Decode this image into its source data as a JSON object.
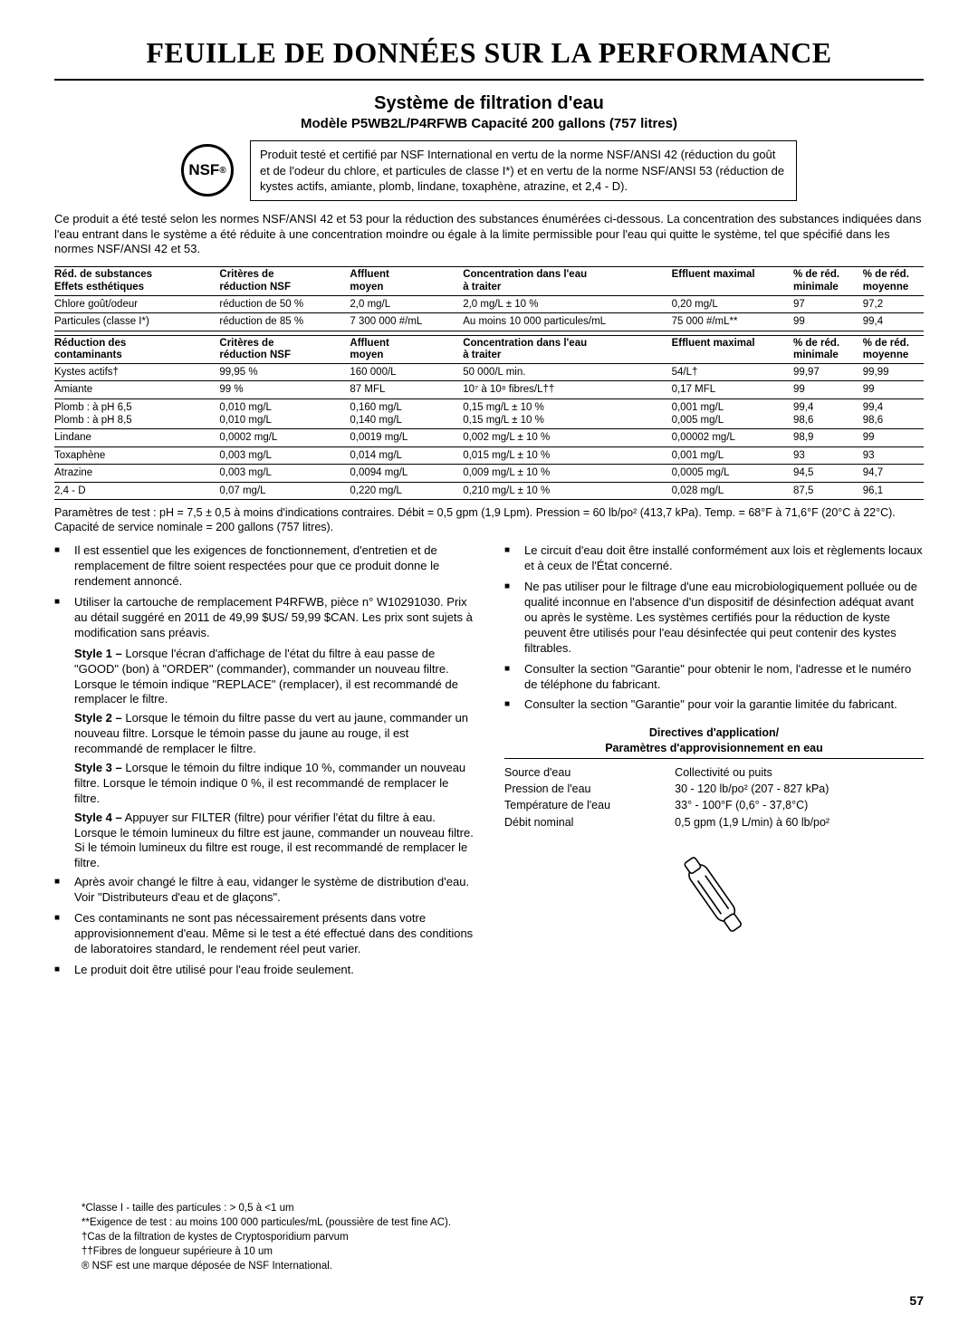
{
  "title": "FEUILLE DE DONNÉES SUR LA PERFORMANCE",
  "subtitle": "Système de filtration d'eau",
  "model": "Modèle P5WB2L/P4RFWB Capacité 200 gallons (757 litres)",
  "nsf_label": "NSF",
  "cert_text": "Produit testé et certifié par NSF International en vertu de la norme NSF/ANSI 42 (réduction du goût et de l'odeur du chlore, et particules de classe I*) et en vertu de la norme NSF/ANSI 53 (réduction de kystes actifs, amiante, plomb, lindane, toxaphène, atrazine, et 2,4 - D).",
  "intro": "Ce produit a été testé selon les normes NSF/ANSI 42 et 53 pour la réduction des substances énumérées ci-dessous. La concentration des substances indiquées dans l'eau entrant dans le système a été réduite à une concentration moindre ou égale à la limite permissible pour l'eau qui quitte le système, tel que spécifié dans les normes NSF/ANSI 42 et 53.",
  "table1": {
    "head": [
      "Réd. de substances\nEffets esthétiques",
      "Critères de\nréduction NSF",
      "Affluent\nmoyen",
      "Concentration dans l'eau\nà traiter",
      "Effluent maximal",
      "% de réd.\nminimale",
      "% de réd.\nmoyenne"
    ],
    "rows": [
      [
        "Chlore goût/odeur",
        "réduction de 50 %",
        "2,0 mg/L",
        "2,0 mg/L ± 10 %",
        "0,20 mg/L",
        "97",
        "97,2"
      ],
      [
        "Particules (classe I*)",
        "réduction de 85 %",
        "7 300 000 #/mL",
        "Au moins 10 000 particules/mL",
        "75 000 #/mL**",
        "99",
        "99,4"
      ]
    ]
  },
  "table2": {
    "head": [
      "Réduction des\ncontaminants",
      "Critères de\nréduction NSF",
      "Affluent\nmoyen",
      "Concentration dans l'eau\nà traiter",
      "Effluent maximal",
      "% de réd.\nminimale",
      "% de réd.\nmoyenne"
    ],
    "rows": [
      [
        "Kystes actifs†",
        "99,95 %",
        "160 000/L",
        "50 000/L min.",
        "54/L†",
        "99,97",
        "99,99"
      ],
      [
        "Amiante",
        "99 %",
        "87 MFL",
        "10⁷ à 10⁸ fibres/L††",
        "0,17 MFL",
        "99",
        "99"
      ],
      [
        "Plomb : à pH 6,5\nPlomb : à pH 8,5",
        "0,010 mg/L\n0,010 mg/L",
        "0,160 mg/L\n0,140 mg/L",
        "0,15 mg/L ± 10 %\n0,15 mg/L ± 10 %",
        "0,001 mg/L\n0,005 mg/L",
        "99,4\n98,6",
        "99,4\n98,6"
      ],
      [
        "Lindane",
        "0,0002 mg/L",
        "0,0019 mg/L",
        "0,002 mg/L ± 10 %",
        "0,00002 mg/L",
        "98,9",
        "99"
      ],
      [
        "Toxaphène",
        "0,003 mg/L",
        "0,014 mg/L",
        "0,015 mg/L ± 10 %",
        "0,001 mg/L",
        "93",
        "93"
      ],
      [
        "Atrazine",
        "0,003 mg/L",
        "0,0094 mg/L",
        "0,009 mg/L ± 10 %",
        "0,0005 mg/L",
        "94,5",
        "94,7"
      ],
      [
        "2,4 - D",
        "0,07 mg/L",
        "0,220 mg/L",
        "0,210 mg/L ± 10 %",
        "0,028 mg/L",
        "87,5",
        "96,1"
      ]
    ]
  },
  "params": "Paramètres de test : pH = 7,5 ± 0,5 à moins d'indications contraires. Débit = 0,5 gpm (1,9 Lpm). Pression = 60 lb/po² (413,7 kPa). Temp. = 68°F à 71,6°F (20°C à 22°C). Capacité de service nominale = 200 gallons (757 litres).",
  "left_bullets": [
    "Il est essentiel que les exigences de fonctionnement, d'entretien et de remplacement de filtre soient respectées pour que ce produit donne le rendement annoncé.",
    "Utiliser la cartouche de remplacement P4RFWB, pièce n° W10291030. Prix au détail suggéré en 2011 de 49,99 $US/ 59,99 $CAN. Les prix sont sujets à modification sans préavis."
  ],
  "styles": [
    {
      "label": "Style 1 –",
      "text": " Lorsque l'écran d'affichage de l'état du filtre à eau passe de \"GOOD\" (bon) à \"ORDER\" (commander), commander un nouveau filtre. Lorsque le témoin indique \"REPLACE\" (remplacer), il est recommandé de remplacer le filtre."
    },
    {
      "label": "Style 2 –",
      "text": " Lorsque le témoin du filtre passe du vert au jaune, commander un nouveau filtre. Lorsque le témoin passe du jaune au rouge, il est recommandé de remplacer le filtre."
    },
    {
      "label": "Style 3 –",
      "text": " Lorsque le témoin du filtre indique 10 %, commander un nouveau filtre. Lorsque le témoin indique 0 %, il est recommandé de remplacer le filtre."
    },
    {
      "label": "Style 4 –",
      "text": " Appuyer sur FILTER (filtre) pour vérifier l'état du filtre à eau. Lorsque le témoin lumineux du filtre est jaune, commander un nouveau filtre. Si le témoin lumineux du filtre est rouge, il est recommandé de remplacer le filtre."
    }
  ],
  "left_bullets2": [
    "Après avoir changé le filtre à eau, vidanger le système de distribution d'eau. Voir \"Distributeurs d'eau et de glaçons\".",
    "Ces contaminants ne sont pas nécessairement présents dans votre approvisionnement d'eau. Même si le test a été effectué dans des conditions de laboratoires standard, le rendement réel peut varier.",
    "Le produit doit être utilisé pour l'eau froide seulement."
  ],
  "right_bullets": [
    "Le circuit d'eau doit être installé conformément aux lois et règlements locaux et à ceux de l'État concerné.",
    "Ne pas utiliser pour le filtrage d'une eau microbiologiquement polluée ou de qualité inconnue en l'absence d'un dispositif de désinfection adéquat avant ou après le système. Les systèmes certifiés pour la réduction de kyste peuvent être utilisés pour l'eau désinfectée qui peut contenir des kystes filtrables.",
    "Consulter la section \"Garantie\" pour obtenir le nom, l'adresse et le numéro de téléphone du fabricant.",
    "Consulter la section \"Garantie\" pour voir la garantie limitée du fabricant."
  ],
  "directives_head": "Directives d'application/\nParamètres d'approvisionnement en eau",
  "supply": [
    [
      "Source d'eau",
      "Collectivité ou puits"
    ],
    [
      "Pression de l'eau",
      "30 - 120 lb/po² (207 - 827 kPa)"
    ],
    [
      "Température de l'eau",
      "33° - 100°F (0,6° - 37,8°C)"
    ],
    [
      "Débit nominal",
      "0,5 gpm (1,9 L/min) à 60 lb/po²"
    ]
  ],
  "footnotes": [
    "*Classe I - taille des particules :  > 0,5 à <1 um",
    "**Exigence de test : au moins 100 000 particules/mL (poussière de test fine AC).",
    "†Cas de la filtration de kystes de Cryptosporidium parvum",
    "††Fibres de longueur supérieure à 10 um",
    "® NSF est une marque déposée de NSF International."
  ],
  "page_number": "57",
  "col_widths": [
    "19%",
    "15%",
    "13%",
    "24%",
    "14%",
    "8%",
    "8%"
  ]
}
